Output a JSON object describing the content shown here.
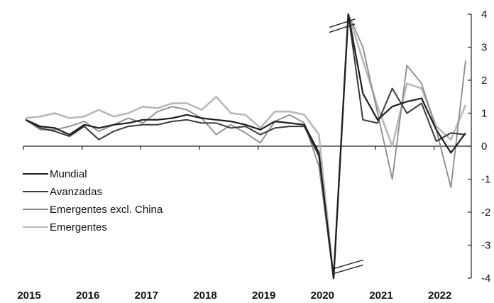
{
  "chart_data": {
    "type": "line",
    "title": "",
    "xlabel": "",
    "ylabel": "",
    "ylim": [
      -4,
      4
    ],
    "y_ticks": [
      "4",
      "3",
      "2",
      "1",
      "0",
      "-1",
      "-2",
      "-3",
      "-4"
    ],
    "y_tick_values": [
      4,
      3,
      2,
      1,
      0,
      -1,
      -2,
      -3,
      -4
    ],
    "x_tick_labels": [
      "2015",
      "2016",
      "2017",
      "2018",
      "2019",
      "2020",
      "2021",
      "2022"
    ],
    "x": [
      "2015T1",
      "2015T2",
      "2015T3",
      "2015T4",
      "2016T1",
      "2016T2",
      "2016T3",
      "2016T4",
      "2017T1",
      "2017T2",
      "2017T3",
      "2017T4",
      "2018T1",
      "2018T2",
      "2018T3",
      "2018T4",
      "2019T1",
      "2019T2",
      "2019T3",
      "2019T4",
      "2020T1",
      "2020T2",
      "2020T3",
      "2020T4",
      "2021T1",
      "2021T2",
      "2021T3",
      "2021T4",
      "2022T1",
      "2022T2",
      "2022T3"
    ],
    "axis_break_note": "y-axis truncated at ±4 during 2020",
    "legend_position": "middle-left",
    "grid": false,
    "series": [
      {
        "name": "Mundial",
        "color": "#1e1e1e",
        "values": [
          0.8,
          0.6,
          0.55,
          0.35,
          0.65,
          0.55,
          0.65,
          0.7,
          0.8,
          0.8,
          0.85,
          0.95,
          0.85,
          0.8,
          0.75,
          0.65,
          0.5,
          0.75,
          0.7,
          0.65,
          -0.2,
          -4,
          4,
          1.6,
          0.8,
          1.2,
          1.35,
          1.45,
          0.5,
          -0.2,
          0.4
        ]
      },
      {
        "name": "Avanzadas",
        "color": "#3a3a3a",
        "values": [
          0.8,
          0.55,
          0.45,
          0.3,
          0.6,
          0.2,
          0.45,
          0.6,
          0.65,
          0.65,
          0.75,
          0.8,
          0.7,
          0.7,
          0.55,
          0.6,
          0.35,
          0.55,
          0.6,
          0.6,
          -0.3,
          -4,
          4,
          0.8,
          0.7,
          1.75,
          1.0,
          1.3,
          0.15,
          0.4,
          0.35
        ]
      },
      {
        "name": "Emergentes excl. China",
        "color": "#8a8a8a",
        "values": [
          0.8,
          0.5,
          0.5,
          0.6,
          0.75,
          0.45,
          0.65,
          0.85,
          0.7,
          1.05,
          1.2,
          1.1,
          0.85,
          0.35,
          0.65,
          0.4,
          0.1,
          0.75,
          0.95,
          0.7,
          -0.6,
          -4,
          4,
          3.0,
          1.0,
          -1.0,
          2.45,
          1.9,
          0.5,
          -1.25,
          2.6
        ]
      },
      {
        "name": "Emergentes",
        "color": "#b8b8b8",
        "values": [
          0.85,
          0.9,
          1.0,
          0.85,
          0.9,
          1.1,
          0.9,
          1.0,
          1.2,
          1.15,
          1.3,
          1.3,
          1.1,
          1.5,
          1.0,
          0.95,
          0.55,
          1.05,
          1.05,
          0.95,
          0.35,
          -4,
          4,
          2.6,
          1.2,
          0.0,
          1.9,
          1.75,
          0.6,
          0.2,
          1.25
        ]
      }
    ]
  }
}
